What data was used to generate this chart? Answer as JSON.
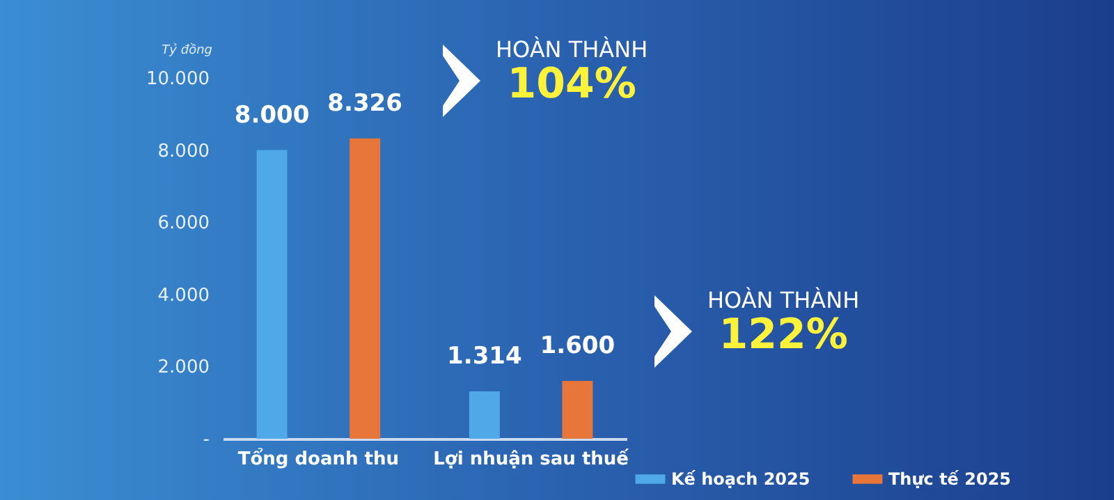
{
  "chart_data": {
    "type": "bar",
    "ylabel": "Tỷ đồng",
    "categories": [
      "Tổng doanh thu",
      "Lợi nhuận sau thuế"
    ],
    "series": [
      {
        "name": "Kế hoạch 2025",
        "color": "#4fa8e8",
        "values": [
          8000,
          1314
        ],
        "value_labels": [
          "8.000",
          "1.314"
        ]
      },
      {
        "name": "Thực tế 2025",
        "color": "#e8763a",
        "values": [
          8326,
          1600
        ],
        "value_labels": [
          "8.326",
          "1.600"
        ]
      }
    ],
    "ylim": [
      0,
      10000
    ],
    "yticks": [
      {
        "value": 0,
        "label": "-"
      },
      {
        "value": 2000,
        "label": "2.000"
      },
      {
        "value": 4000,
        "label": "4.000"
      },
      {
        "value": 6000,
        "label": "6.000"
      },
      {
        "value": 8000,
        "label": "8.000"
      },
      {
        "value": 10000,
        "label": "10.000"
      }
    ],
    "grid": false,
    "legend": "bottom right",
    "annotations": [
      "HOÀN THÀNH 104%",
      "HOÀN THÀNH 122%"
    ]
  }
}
